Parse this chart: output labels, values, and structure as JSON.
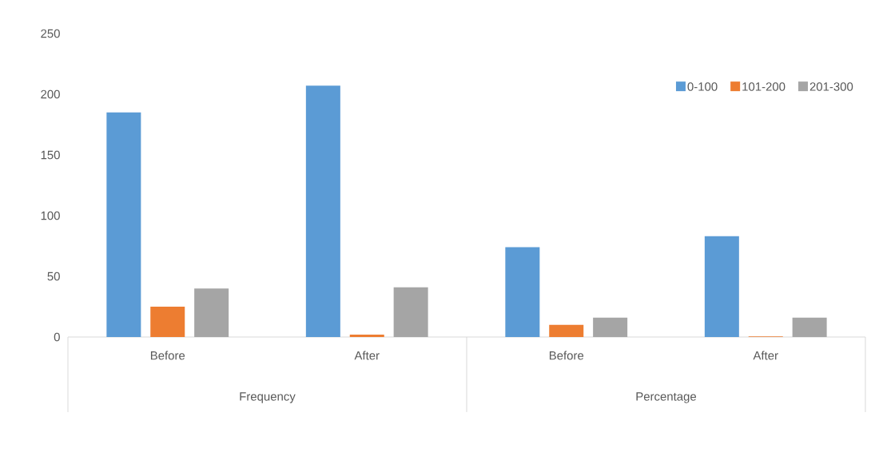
{
  "chart_data": {
    "type": "bar",
    "categories": [
      "Before",
      "After",
      "Before",
      "After"
    ],
    "series": [
      {
        "name": "0-100",
        "color": "#5b9bd5",
        "values": [
          185,
          207,
          74,
          83
        ]
      },
      {
        "name": "101-200",
        "color": "#ed7d31",
        "values": [
          25,
          2,
          10,
          0.5
        ]
      },
      {
        "name": "201-300",
        "color": "#a5a5a5",
        "values": [
          40,
          41,
          16,
          16
        ]
      }
    ],
    "annotations": [
      "Frequency",
      "Percentage"
    ],
    "ylim": [
      0,
      250
    ],
    "yticks": [
      0,
      50,
      100,
      150,
      200,
      250
    ],
    "legend": "top right"
  }
}
